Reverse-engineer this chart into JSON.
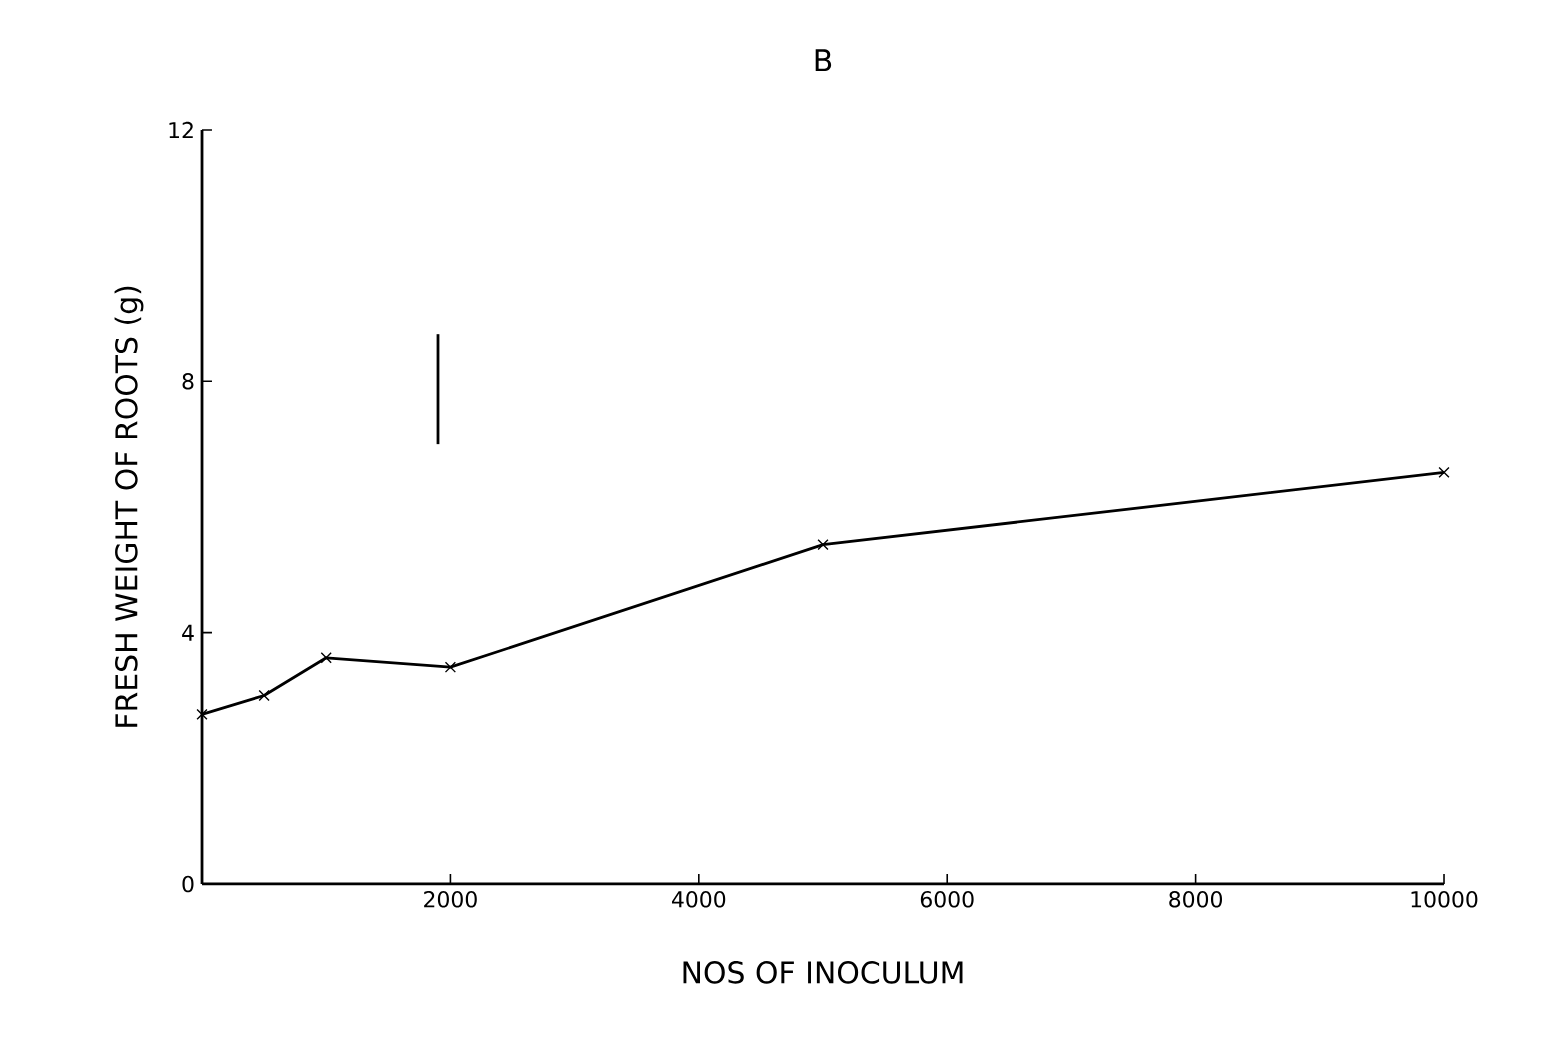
{
  "chart_data": {
    "type": "line",
    "title": "B",
    "xlabel": "NOS OF INOCULUM",
    "ylabel": "FRESH WEIGHT OF ROOTS (g)",
    "xlim": [
      0,
      10000
    ],
    "xticks": [
      2000,
      4000,
      6000,
      8000,
      10000
    ],
    "ylim": [
      0,
      12
    ],
    "yticks": [
      0,
      4,
      8,
      12
    ],
    "marker": "cross",
    "series": [
      {
        "color": "#000000",
        "x": [
          0,
          500,
          1000,
          2000,
          5000,
          10000
        ],
        "values": [
          2.7,
          3.0,
          3.6,
          3.45,
          5.4,
          6.55
        ]
      },
      {
        "color": "#000000",
        "marker": "none",
        "x": [
          1900,
          1900
        ],
        "values": [
          7.0,
          8.75
        ]
      }
    ]
  }
}
